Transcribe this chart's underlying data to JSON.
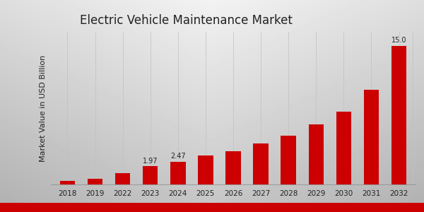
{
  "title": "Electric Vehicle Maintenance Market",
  "ylabel": "Market Value in USD Billion",
  "categories": [
    "2018",
    "2019",
    "2022",
    "2023",
    "2024",
    "2025",
    "2026",
    "2027",
    "2028",
    "2029",
    "2030",
    "2031",
    "2032"
  ],
  "values": [
    0.42,
    0.58,
    1.2,
    1.97,
    2.47,
    3.1,
    3.6,
    4.4,
    5.3,
    6.5,
    7.9,
    10.2,
    15.0
  ],
  "bar_color": "#cc0000",
  "label_values": {
    "2023": "1.97",
    "2024": "2.47",
    "2032": "15.0"
  },
  "bg_color_light": "#e8e8e8",
  "bg_color_dark": "#b0b0b0",
  "title_fontsize": 12,
  "ylabel_fontsize": 8,
  "tick_fontsize": 7.5,
  "label_fontsize": 7,
  "bottom_bar_color": "#cc0000",
  "ylim": [
    0,
    16.5
  ],
  "grid_color": "#c0c0c0"
}
